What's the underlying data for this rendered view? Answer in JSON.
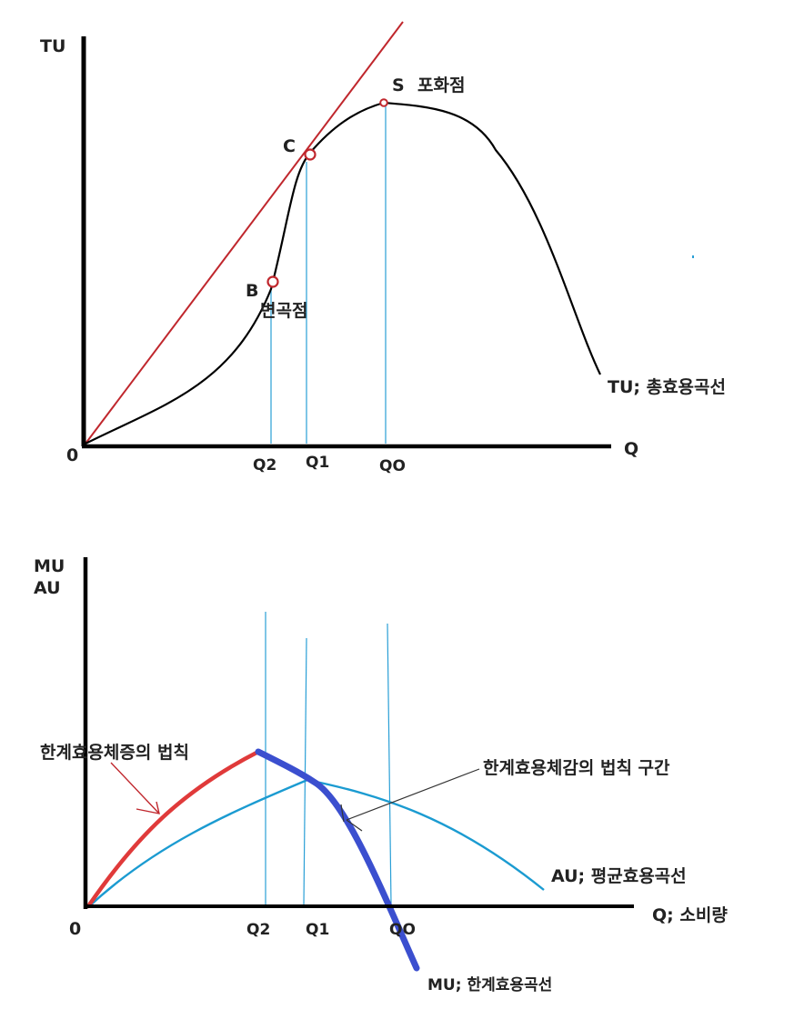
{
  "colors": {
    "axis": "#000000",
    "tu_curve": "#000000",
    "tangent": "#c0272d",
    "guide": "#2a9fd6",
    "mu_curve": "#3b4fcf",
    "au_curve": "#1b9bd1",
    "increasing_label": "#e03a3a",
    "diminishing_label": "#1b9bd1"
  },
  "top_graph": {
    "y_axis_label": "TU",
    "x_axis_label": "Q",
    "origin_label": "0",
    "point_b": "B",
    "inflection_label": "변곡점",
    "point_c": "C",
    "point_s": "S",
    "saturation_label": "포화점",
    "curve_label": "TU; 총효용곡선",
    "ticks": [
      "Q2",
      "Q1",
      "QO"
    ]
  },
  "bottom_graph": {
    "y_axis_label_1": "MU",
    "y_axis_label_2": "AU",
    "x_axis_label": "Q; 소비량",
    "origin_label": "0",
    "ticks": [
      "Q2",
      "Q1",
      "QO"
    ],
    "increasing_label": "한계효용체증의 법칙",
    "diminishing_label": "한계효용체감의 법칙 구간",
    "au_label": "AU; 평균효용곡선",
    "mu_label": "MU; 한계효용곡선"
  }
}
